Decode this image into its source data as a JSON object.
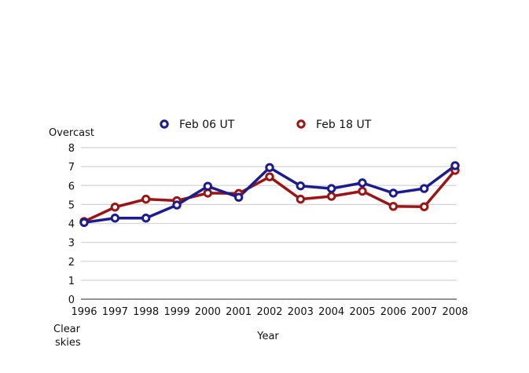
{
  "chart_data": {
    "type": "line",
    "title": "",
    "xlabel": "Year",
    "ylabel": "",
    "y_top_label": "Overcast",
    "y_bottom_label": [
      "Clear",
      "skies"
    ],
    "categories": [
      "1996",
      "1997",
      "1998",
      "1999",
      "2000",
      "2001",
      "2002",
      "2003",
      "2004",
      "2005",
      "2006",
      "2007",
      "2008"
    ],
    "ylim": [
      0,
      8
    ],
    "yticks": [
      0,
      1,
      2,
      3,
      4,
      5,
      6,
      7,
      8
    ],
    "grid": true,
    "legend_position": "top",
    "series": [
      {
        "name": "Feb 06 UT",
        "color": "#1c1c8c",
        "values": [
          4.05,
          4.28,
          4.28,
          4.97,
          5.96,
          5.38,
          6.95,
          5.98,
          5.84,
          6.14,
          5.6,
          5.84,
          7.05
        ]
      },
      {
        "name": "Feb 18 UT",
        "color": "#9a1515",
        "values": [
          4.1,
          4.86,
          5.28,
          5.2,
          5.6,
          5.58,
          6.46,
          5.28,
          5.43,
          5.7,
          4.9,
          4.88,
          6.8
        ]
      }
    ]
  }
}
